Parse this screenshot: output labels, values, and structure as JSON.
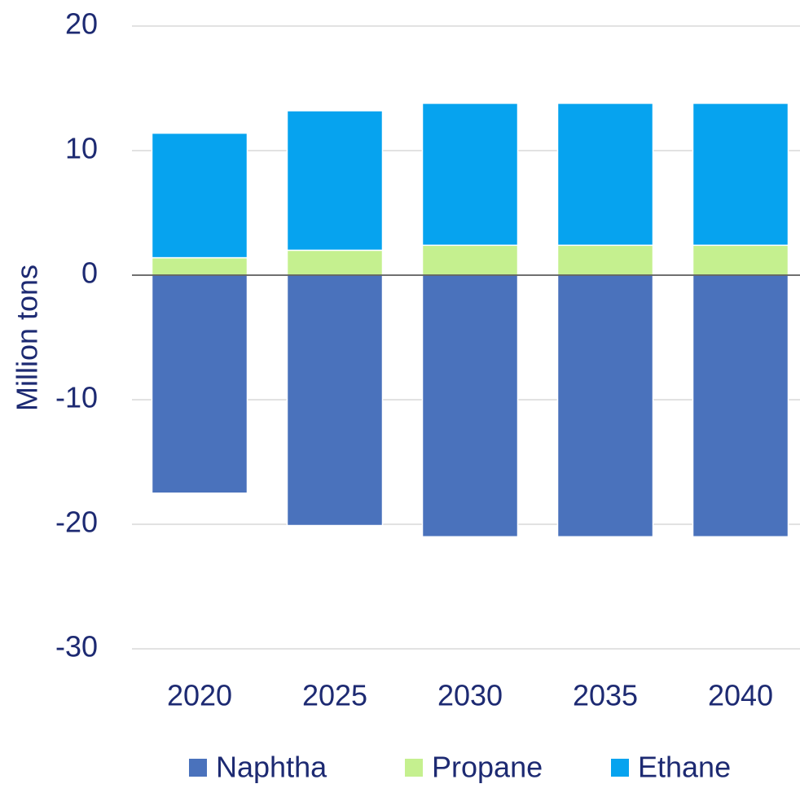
{
  "chart_data": {
    "type": "stacked-bar",
    "y_label": "Million tons",
    "categories": [
      "2020",
      "2025",
      "2030",
      "2035",
      "2040"
    ],
    "series": [
      {
        "name": "Naphtha",
        "color": "#4a72bc",
        "values": [
          -17.5,
          -20.1,
          -21.0,
          -21.0,
          -21.0
        ]
      },
      {
        "name": "Propane",
        "color": "#c5f08f",
        "values": [
          1.4,
          2.0,
          2.4,
          2.4,
          2.4
        ]
      },
      {
        "name": "Ethane",
        "color": "#06a3ef",
        "values": [
          10.0,
          11.2,
          11.4,
          11.4,
          11.4
        ]
      }
    ],
    "ylim": [
      -30,
      20
    ],
    "yticks": [
      -30,
      -20,
      -10,
      0,
      10,
      20
    ],
    "grid": true,
    "legend": "bottom"
  }
}
